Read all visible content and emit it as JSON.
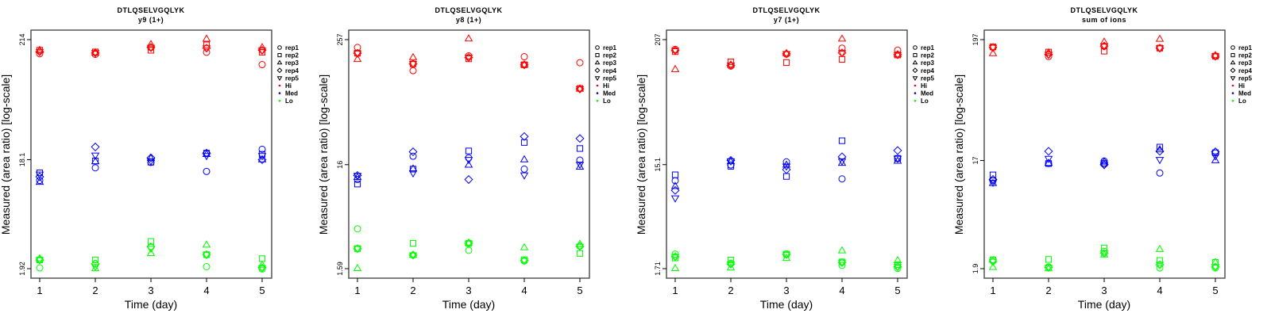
{
  "chart_data": [
    {
      "type": "scatter",
      "title": "DTLQSELVGQLYK",
      "subtitle": "y9 (1+)",
      "xlabel": "Time (day)",
      "ylabel": "Measured (area ratio) [log-scale]",
      "yscale": "log",
      "x": [
        1,
        2,
        3,
        4,
        5
      ],
      "yticks": [
        1.92,
        18.1,
        214
      ],
      "ytick_labels": [
        "1.92",
        "18.1",
        "214"
      ],
      "legend": {
        "placement": "right",
        "reps": [
          "rep1",
          "rep2",
          "rep3",
          "rep4",
          "rep5"
        ],
        "levels": [
          "Hi",
          "Med",
          "Lo"
        ]
      },
      "series": [
        {
          "name": "Hi",
          "color": "#ff0000",
          "reps": [
            [
              160,
              158,
              182,
              165,
              128
            ],
            [
              172,
              166,
              172,
              192,
              165
            ],
            [
              172,
              163,
              194,
              217,
              182
            ],
            [
              167,
              163,
              182,
              180,
              172
            ],
            [
              167,
              163,
              182,
              180,
              172
            ]
          ]
        },
        {
          "name": "Med",
          "color": "#0000ff",
          "reps": [
            [
              11.8,
              15.3,
              17.1,
              14.2,
              22.4
            ],
            [
              13.8,
              17.6,
              17.2,
              20.7,
              20.2
            ],
            [
              11.4,
              17.4,
              18.6,
              20.2,
              18.1
            ],
            [
              12.7,
              23.5,
              18.8,
              20.7,
              18.1
            ],
            [
              13.4,
              19.8,
              17.6,
              19.6,
              19.6
            ]
          ]
        },
        {
          "name": "Lo",
          "color": "#00ff00",
          "reps": [
            [
              1.95,
              2.12,
              3.01,
              2.0,
              1.91
            ],
            [
              2.3,
              2.3,
              3.36,
              2.56,
              2.36
            ],
            [
              2.36,
              1.92,
              2.63,
              3.13,
              2.07
            ],
            [
              2.3,
              2.12,
              3.01,
              2.56,
              1.95
            ],
            [
              2.3,
              2.0,
              2.9,
              2.56,
              1.95
            ]
          ]
        }
      ]
    },
    {
      "type": "scatter",
      "title": "DTLQSELVGQLYK",
      "subtitle": "y8 (1+)",
      "xlabel": "Time (day)",
      "ylabel": "Measured (area ratio) [log-scale]",
      "yscale": "log",
      "x": [
        1,
        2,
        3,
        4,
        5
      ],
      "yticks": [
        1.59,
        16,
        257
      ],
      "ytick_labels": [
        "1.59",
        "16",
        "257"
      ],
      "legend": {
        "placement": "right",
        "reps": [
          "rep1",
          "rep2",
          "rep3",
          "rep4",
          "rep5"
        ],
        "levels": [
          "Hi",
          "Med",
          "Lo"
        ]
      },
      "series": [
        {
          "name": "Hi",
          "color": "#ff0000",
          "reps": [
            [
              216,
              129,
              179,
              176,
              154
            ],
            [
              190,
              150,
              168,
              147,
              87
            ],
            [
              166,
              173,
              262,
              147,
              86
            ],
            [
              190,
              150,
              173,
              147,
              86
            ],
            [
              190,
              150,
              173,
              147,
              86
            ]
          ]
        },
        {
          "name": "Med",
          "color": "#0000ff",
          "reps": [
            [
              11.5,
              19.3,
              18.6,
              14.5,
              17.7
            ],
            [
              10.4,
              14.5,
              21.7,
              26.2,
              22.9
            ],
            [
              12.1,
              14.6,
              15.9,
              17.9,
              15.2
            ],
            [
              12.6,
              21.3,
              11.5,
              29.9,
              28.6
            ],
            [
              12.6,
              13.3,
              17.9,
              12.7,
              16.1
            ]
          ]
        },
        {
          "name": "Lo",
          "color": "#00ff00",
          "reps": [
            [
              3.85,
              2.15,
              2.39,
              1.89,
              2.63
            ],
            [
              2.48,
              2.79,
              2.79,
              1.94,
              2.23
            ],
            [
              1.6,
              2.15,
              2.82,
              2.54,
              2.74
            ],
            [
              2.48,
              2.15,
              2.79,
              1.9,
              2.6
            ],
            [
              2.48,
              2.15,
              2.79,
              1.9,
              2.6
            ]
          ]
        }
      ]
    },
    {
      "type": "scatter",
      "title": "DTLQSELVGQLYK",
      "subtitle": "y7 (1+)",
      "xlabel": "Time (day)",
      "ylabel": "Measured (area ratio) [log-scale]",
      "yscale": "log",
      "x": [
        1,
        2,
        3,
        4,
        5
      ],
      "yticks": [
        1.71,
        15.1,
        207
      ],
      "ytick_labels": [
        "1.71",
        "15.1",
        "207"
      ],
      "legend": {
        "placement": "right",
        "reps": [
          "rep1",
          "rep2",
          "rep3",
          "rep4",
          "rep5"
        ],
        "levels": [
          "Hi",
          "Med",
          "Lo"
        ]
      },
      "series": [
        {
          "name": "Hi",
          "color": "#ff0000",
          "reps": [
            [
              169,
              119,
              153,
              173,
              166
            ],
            [
              161,
              130,
              128,
              137,
              150
            ],
            [
              111,
              122,
              155,
              210,
              151
            ],
            [
              165,
              121,
              154,
              157,
              151
            ],
            [
              165,
              121,
              154,
              157,
              151
            ]
          ]
        },
        {
          "name": "Med",
          "color": "#0000ff",
          "reps": [
            [
              10.8,
              15.0,
              16.0,
              11.2,
              17.2
            ],
            [
              12.2,
              14.6,
              11.8,
              24.9,
              17.2
            ],
            [
              9.6,
              16.1,
              15.0,
              15.6,
              16.3
            ],
            [
              8.8,
              16.5,
              13.6,
              17.8,
              20.3
            ],
            [
              7.5,
              16.3,
              14.6,
              16.3,
              17.2
            ]
          ]
        },
        {
          "name": "Lo",
          "color": "#00ff00",
          "reps": [
            [
              2.32,
              1.92,
              2.33,
              1.83,
              1.72
            ],
            [
              2.14,
              2.05,
              2.32,
              1.97,
              1.86
            ],
            [
              1.72,
              1.74,
              2.13,
              2.49,
              2.03
            ],
            [
              2.2,
              1.88,
              2.3,
              1.95,
              1.78
            ],
            [
              2.2,
              1.88,
              2.3,
              1.95,
              1.78
            ]
          ]
        }
      ]
    },
    {
      "type": "scatter",
      "title": "DTLQSELVGQLYK",
      "subtitle": "sum of ions",
      "xlabel": "Time (day)",
      "ylabel": "Measured (area ratio) [log-scale]",
      "yscale": "log",
      "x": [
        1,
        2,
        3,
        4,
        5
      ],
      "yticks": [
        1.9,
        17,
        197
      ],
      "ytick_labels": [
        "1.9",
        "17",
        "197"
      ],
      "legend": {
        "placement": "right",
        "reps": [
          "rep1",
          "rep2",
          "rep3",
          "rep4",
          "rep5"
        ],
        "levels": [
          "Hi",
          "Med",
          "Lo"
        ]
      },
      "series": [
        {
          "name": "Hi",
          "color": "#ff0000",
          "reps": [
            [
              169,
              140,
              172,
              166,
              141
            ],
            [
              170,
              153,
              156,
              166,
              141
            ],
            [
              149,
              151,
              188,
              199,
              143
            ],
            [
              168,
              146,
              173,
              166,
              141
            ],
            [
              168,
              146,
              173,
              166,
              141
            ]
          ]
        },
        {
          "name": "Med",
          "color": "#0000ff",
          "reps": [
            [
              11.3,
              16.0,
              16.8,
              13.2,
              19.8
            ],
            [
              12.7,
              16.0,
              16.1,
              22.3,
              19.9
            ],
            [
              10.7,
              16.1,
              16.6,
              21.2,
              17.0
            ],
            [
              11.6,
              20.5,
              15.6,
              20.5,
              20.3
            ],
            [
              10.9,
              17.7,
              15.6,
              17.3,
              18.6
            ]
          ]
        },
        {
          "name": "Lo",
          "color": "#00ff00",
          "reps": [
            [
              2.27,
              1.97,
              2.7,
              1.93,
              1.93
            ],
            [
              2.27,
              2.29,
              2.89,
              2.24,
              2.16
            ],
            [
              1.95,
              1.9,
              2.52,
              2.81,
              2.16
            ],
            [
              2.2,
              1.95,
              2.6,
              2.06,
              1.97
            ],
            [
              2.2,
              1.95,
              2.6,
              2.06,
              1.97
            ]
          ]
        }
      ]
    }
  ]
}
